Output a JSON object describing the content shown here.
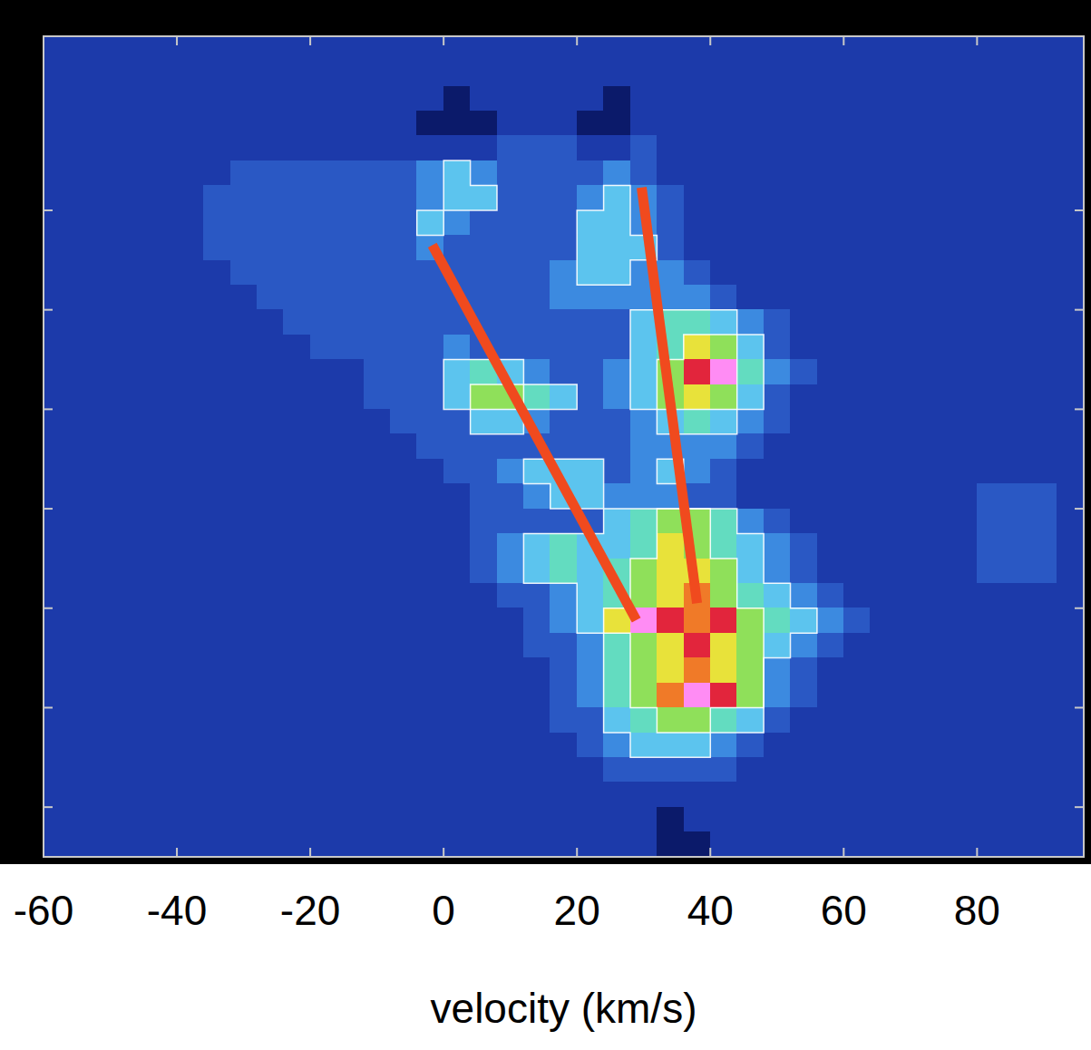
{
  "chart_data": {
    "type": "heatmap",
    "x_label": "velocity (km/s)",
    "xlim": [
      -60,
      96
    ],
    "ylim": [
      0.5,
      8.75
    ],
    "xticks": [
      -60,
      -40,
      -20,
      0,
      20,
      40,
      60,
      80
    ],
    "yticks": [
      1,
      2,
      3,
      4,
      5,
      6,
      7
    ],
    "tick_labels": "x",
    "zlim": [
      1,
      11
    ],
    "contour_levels": [
      5,
      7
    ],
    "x": [
      -58,
      -54,
      -50,
      -46,
      -42,
      -38,
      -34,
      -30,
      -26,
      -22,
      -18,
      -14,
      -10,
      -6,
      -2,
      2,
      6,
      10,
      14,
      18,
      22,
      26,
      30,
      34,
      38,
      42,
      46,
      50,
      54,
      58,
      62,
      66,
      70,
      74,
      78,
      82,
      86,
      90,
      94
    ],
    "y": [
      8.625,
      8.375,
      8.125,
      7.875,
      7.625,
      7.375,
      7.125,
      6.875,
      6.625,
      6.375,
      6.125,
      5.875,
      5.625,
      5.375,
      5.125,
      4.875,
      4.625,
      4.375,
      4.125,
      3.875,
      3.625,
      3.375,
      3.125,
      2.875,
      2.625,
      2.375,
      2.125,
      1.875,
      1.625,
      1.375,
      1.125,
      0.875,
      0.625
    ],
    "cells": [
      [
        2,
        2,
        2,
        2,
        2,
        2,
        2,
        2,
        2,
        2,
        2,
        2,
        2,
        2,
        2,
        2,
        2,
        2,
        2,
        2,
        2,
        2,
        2,
        2,
        2,
        2,
        2,
        2,
        2,
        2,
        2,
        2,
        2,
        2,
        2,
        2,
        2,
        2,
        2
      ],
      [
        2,
        2,
        2,
        2,
        2,
        2,
        2,
        2,
        2,
        2,
        2,
        2,
        2,
        2,
        2,
        2,
        2,
        2,
        2,
        2,
        2,
        2,
        2,
        2,
        2,
        2,
        2,
        2,
        2,
        2,
        2,
        2,
        2,
        2,
        2,
        2,
        2,
        2,
        2
      ],
      [
        2,
        2,
        2,
        2,
        2,
        2,
        2,
        2,
        2,
        2,
        2,
        2,
        2,
        2,
        2,
        1,
        2,
        2,
        2,
        2,
        2,
        1,
        2,
        2,
        2,
        2,
        2,
        2,
        2,
        2,
        2,
        2,
        2,
        2,
        2,
        2,
        2,
        2,
        2
      ],
      [
        2,
        2,
        2,
        2,
        2,
        2,
        2,
        2,
        2,
        2,
        2,
        2,
        2,
        2,
        1,
        1,
        1,
        2,
        2,
        2,
        1,
        1,
        2,
        2,
        2,
        2,
        2,
        2,
        2,
        2,
        2,
        2,
        2,
        2,
        2,
        2,
        2,
        2,
        2
      ],
      [
        2,
        2,
        2,
        2,
        2,
        2,
        2,
        2,
        2,
        2,
        2,
        2,
        2,
        2,
        2,
        2,
        2,
        3,
        3,
        3,
        2,
        2,
        3,
        2,
        2,
        2,
        2,
        2,
        2,
        2,
        2,
        2,
        2,
        2,
        2,
        2,
        2,
        2,
        2
      ],
      [
        2,
        2,
        2,
        2,
        2,
        2,
        2,
        3,
        3,
        3,
        3,
        3,
        3,
        3,
        4,
        5,
        4,
        3,
        3,
        3,
        3,
        4,
        3,
        2,
        2,
        2,
        2,
        2,
        2,
        2,
        2,
        2,
        2,
        2,
        2,
        2,
        2,
        2,
        2
      ],
      [
        2,
        2,
        2,
        2,
        2,
        2,
        3,
        3,
        3,
        3,
        3,
        3,
        3,
        3,
        4,
        5,
        5,
        3,
        3,
        3,
        4,
        5,
        4,
        3,
        2,
        2,
        2,
        2,
        2,
        2,
        2,
        2,
        2,
        2,
        2,
        2,
        2,
        2,
        2
      ],
      [
        2,
        2,
        2,
        2,
        2,
        2,
        3,
        3,
        3,
        3,
        3,
        3,
        3,
        3,
        5,
        4,
        3,
        3,
        3,
        3,
        5,
        5,
        4,
        3,
        2,
        2,
        2,
        2,
        2,
        2,
        2,
        2,
        2,
        2,
        2,
        2,
        2,
        2,
        2
      ],
      [
        2,
        2,
        2,
        2,
        2,
        2,
        3,
        3,
        3,
        3,
        3,
        3,
        3,
        3,
        4,
        3,
        3,
        3,
        3,
        3,
        5,
        5,
        5,
        3,
        2,
        2,
        2,
        2,
        2,
        2,
        2,
        2,
        2,
        2,
        2,
        2,
        2,
        2,
        2
      ],
      [
        2,
        2,
        2,
        2,
        2,
        2,
        2,
        3,
        3,
        3,
        3,
        3,
        3,
        3,
        3,
        3,
        3,
        3,
        3,
        4,
        5,
        5,
        4,
        4,
        3,
        2,
        2,
        2,
        2,
        2,
        2,
        2,
        2,
        2,
        2,
        2,
        2,
        2,
        2
      ],
      [
        2,
        2,
        2,
        2,
        2,
        2,
        2,
        2,
        3,
        3,
        3,
        3,
        3,
        3,
        3,
        3,
        3,
        3,
        3,
        4,
        4,
        4,
        4,
        4,
        4,
        3,
        2,
        2,
        2,
        2,
        2,
        2,
        2,
        2,
        2,
        2,
        2,
        2,
        2
      ],
      [
        2,
        2,
        2,
        2,
        2,
        2,
        2,
        2,
        2,
        3,
        3,
        3,
        3,
        3,
        3,
        3,
        3,
        3,
        3,
        3,
        3,
        3,
        5,
        6,
        6,
        5,
        4,
        3,
        2,
        2,
        2,
        2,
        2,
        2,
        2,
        2,
        2,
        2,
        2
      ],
      [
        2,
        2,
        2,
        2,
        2,
        2,
        2,
        2,
        2,
        2,
        3,
        3,
        3,
        3,
        3,
        4,
        3,
        3,
        3,
        3,
        3,
        3,
        5,
        6,
        8,
        7,
        5,
        3,
        2,
        2,
        2,
        2,
        2,
        2,
        2,
        2,
        2,
        2,
        2
      ],
      [
        2,
        2,
        2,
        2,
        2,
        2,
        2,
        2,
        2,
        2,
        2,
        2,
        3,
        3,
        3,
        5,
        6,
        5,
        4,
        3,
        3,
        4,
        5,
        7,
        10,
        11,
        6,
        4,
        3,
        2,
        2,
        2,
        2,
        2,
        2,
        2,
        2,
        2,
        2
      ],
      [
        2,
        2,
        2,
        2,
        2,
        2,
        2,
        2,
        2,
        2,
        2,
        2,
        3,
        3,
        3,
        5,
        7,
        7,
        6,
        5,
        3,
        4,
        5,
        7,
        8,
        7,
        5,
        3,
        2,
        2,
        2,
        2,
        2,
        2,
        2,
        2,
        2,
        2,
        2
      ],
      [
        2,
        2,
        2,
        2,
        2,
        2,
        2,
        2,
        2,
        2,
        2,
        2,
        2,
        3,
        3,
        3,
        5,
        5,
        4,
        3,
        3,
        3,
        4,
        5,
        6,
        5,
        4,
        3,
        2,
        2,
        2,
        2,
        2,
        2,
        2,
        2,
        2,
        2,
        2
      ],
      [
        2,
        2,
        2,
        2,
        2,
        2,
        2,
        2,
        2,
        2,
        2,
        2,
        2,
        2,
        3,
        3,
        3,
        3,
        3,
        3,
        3,
        3,
        4,
        4,
        4,
        4,
        3,
        2,
        2,
        2,
        2,
        2,
        2,
        2,
        2,
        2,
        2,
        2,
        2
      ],
      [
        2,
        2,
        2,
        2,
        2,
        2,
        2,
        2,
        2,
        2,
        2,
        2,
        2,
        2,
        2,
        3,
        3,
        4,
        5,
        5,
        5,
        3,
        4,
        5,
        4,
        3,
        2,
        2,
        2,
        2,
        2,
        2,
        2,
        2,
        2,
        2,
        2,
        2,
        2
      ],
      [
        2,
        2,
        2,
        2,
        2,
        2,
        2,
        2,
        2,
        2,
        2,
        2,
        2,
        2,
        2,
        2,
        3,
        3,
        4,
        5,
        5,
        4,
        4,
        4,
        3,
        3,
        2,
        2,
        2,
        2,
        2,
        2,
        2,
        2,
        2,
        3,
        3,
        3,
        2
      ],
      [
        2,
        2,
        2,
        2,
        2,
        2,
        2,
        2,
        2,
        2,
        2,
        2,
        2,
        2,
        2,
        2,
        3,
        3,
        3,
        3,
        3,
        5,
        6,
        7,
        7,
        6,
        4,
        3,
        2,
        2,
        2,
        2,
        2,
        2,
        2,
        3,
        3,
        3,
        2
      ],
      [
        2,
        2,
        2,
        2,
        2,
        2,
        2,
        2,
        2,
        2,
        2,
        2,
        2,
        2,
        2,
        2,
        3,
        4,
        5,
        6,
        5,
        5,
        6,
        8,
        7,
        6,
        5,
        4,
        3,
        2,
        2,
        2,
        2,
        2,
        2,
        3,
        3,
        3,
        2
      ],
      [
        2,
        2,
        2,
        2,
        2,
        2,
        2,
        2,
        2,
        2,
        2,
        2,
        2,
        2,
        2,
        2,
        3,
        4,
        5,
        6,
        5,
        6,
        7,
        8,
        8,
        7,
        5,
        4,
        3,
        2,
        2,
        2,
        2,
        2,
        2,
        3,
        3,
        3,
        2
      ],
      [
        2,
        2,
        2,
        2,
        2,
        2,
        2,
        2,
        2,
        2,
        2,
        2,
        2,
        2,
        2,
        2,
        2,
        3,
        3,
        4,
        5,
        6,
        7,
        8,
        9,
        7,
        6,
        5,
        4,
        3,
        2,
        2,
        2,
        2,
        2,
        2,
        2,
        2,
        2
      ],
      [
        2,
        2,
        2,
        2,
        2,
        2,
        2,
        2,
        2,
        2,
        2,
        2,
        2,
        2,
        2,
        2,
        2,
        2,
        3,
        4,
        5,
        8,
        11,
        10,
        9,
        10,
        7,
        6,
        5,
        4,
        3,
        2,
        2,
        2,
        2,
        2,
        2,
        2,
        2
      ],
      [
        2,
        2,
        2,
        2,
        2,
        2,
        2,
        2,
        2,
        2,
        2,
        2,
        2,
        2,
        2,
        2,
        2,
        2,
        3,
        3,
        4,
        6,
        7,
        8,
        10,
        8,
        7,
        5,
        4,
        3,
        2,
        2,
        2,
        2,
        2,
        2,
        2,
        2,
        2
      ],
      [
        2,
        2,
        2,
        2,
        2,
        2,
        2,
        2,
        2,
        2,
        2,
        2,
        2,
        2,
        2,
        2,
        2,
        2,
        2,
        3,
        4,
        6,
        7,
        8,
        9,
        8,
        7,
        4,
        3,
        2,
        2,
        2,
        2,
        2,
        2,
        2,
        2,
        2,
        2
      ],
      [
        2,
        2,
        2,
        2,
        2,
        2,
        2,
        2,
        2,
        2,
        2,
        2,
        2,
        2,
        2,
        2,
        2,
        2,
        2,
        3,
        4,
        6,
        7,
        9,
        11,
        10,
        7,
        4,
        3,
        2,
        2,
        2,
        2,
        2,
        2,
        2,
        2,
        2,
        2
      ],
      [
        2,
        2,
        2,
        2,
        2,
        2,
        2,
        2,
        2,
        2,
        2,
        2,
        2,
        2,
        2,
        2,
        2,
        2,
        2,
        3,
        3,
        5,
        6,
        7,
        7,
        6,
        5,
        3,
        2,
        2,
        2,
        2,
        2,
        2,
        2,
        2,
        2,
        2,
        2
      ],
      [
        2,
        2,
        2,
        2,
        2,
        2,
        2,
        2,
        2,
        2,
        2,
        2,
        2,
        2,
        2,
        2,
        2,
        2,
        2,
        2,
        3,
        4,
        5,
        5,
        5,
        4,
        3,
        2,
        2,
        2,
        2,
        2,
        2,
        2,
        2,
        2,
        2,
        2,
        2
      ],
      [
        2,
        2,
        2,
        2,
        2,
        2,
        2,
        2,
        2,
        2,
        2,
        2,
        2,
        2,
        2,
        2,
        2,
        2,
        2,
        2,
        2,
        3,
        3,
        3,
        3,
        3,
        2,
        2,
        2,
        2,
        2,
        2,
        2,
        2,
        2,
        2,
        2,
        2,
        2
      ],
      [
        2,
        2,
        2,
        2,
        2,
        2,
        2,
        2,
        2,
        2,
        2,
        2,
        2,
        2,
        2,
        2,
        2,
        2,
        2,
        2,
        2,
        2,
        2,
        2,
        2,
        2,
        2,
        2,
        2,
        2,
        2,
        2,
        2,
        2,
        2,
        2,
        2,
        2,
        2
      ],
      [
        2,
        2,
        2,
        2,
        2,
        2,
        2,
        2,
        2,
        2,
        2,
        2,
        2,
        2,
        2,
        2,
        2,
        2,
        2,
        2,
        2,
        2,
        2,
        1,
        2,
        2,
        2,
        2,
        2,
        2,
        2,
        2,
        2,
        2,
        2,
        2,
        2,
        2,
        2
      ],
      [
        2,
        2,
        2,
        2,
        2,
        2,
        2,
        2,
        2,
        2,
        2,
        2,
        2,
        2,
        2,
        2,
        2,
        2,
        2,
        2,
        2,
        2,
        2,
        1,
        1,
        2,
        2,
        2,
        2,
        2,
        2,
        2,
        2,
        2,
        2,
        2,
        2,
        2,
        2
      ]
    ],
    "lines": [
      {
        "x": [
          -1.7,
          28.9
        ],
        "y": [
          6.65,
          2.88
        ],
        "color": "#f04a1e"
      },
      {
        "x": [
          29.7,
          38.0
        ],
        "y": [
          7.23,
          3.05
        ],
        "color": "#f04a1e"
      }
    ]
  }
}
